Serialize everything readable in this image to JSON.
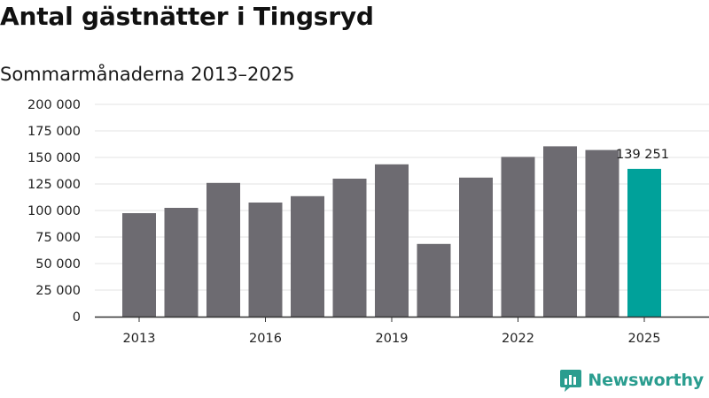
{
  "title": "Antal gästnätter i Tingsryd",
  "subtitle": "Sommarmånaderna 2013–2025",
  "brand": {
    "name": "Newsworthy",
    "icon": "newsworthy-logo-icon",
    "color": "#2a9d8f"
  },
  "colors": {
    "bar": "#6d6b71",
    "highlight": "#00a19a",
    "grid": "#e3e3e3",
    "axis": "#333333"
  },
  "chart_data": {
    "type": "bar",
    "title": "Antal gästnätter i Tingsryd",
    "subtitle": "Sommarmånaderna 2013–2025",
    "xlabel": "",
    "ylabel": "",
    "categories": [
      "2013",
      "2014",
      "2015",
      "2016",
      "2017",
      "2018",
      "2019",
      "2020",
      "2021",
      "2022",
      "2023",
      "2024",
      "2025"
    ],
    "values": [
      97500,
      102500,
      126000,
      107500,
      113500,
      130000,
      143500,
      68500,
      131000,
      150500,
      160500,
      157000,
      139251
    ],
    "highlight_index": 12,
    "x_tick_labels": [
      "2013",
      "2016",
      "2019",
      "2022",
      "2025"
    ],
    "y_ticks": [
      0,
      25000,
      50000,
      75000,
      100000,
      125000,
      150000,
      175000,
      200000
    ],
    "y_tick_labels": [
      "0",
      "25 000",
      "50 000",
      "75 000",
      "100 000",
      "125 000",
      "150 000",
      "175 000",
      "200 000"
    ],
    "ylim": [
      0,
      200000
    ],
    "grid": true,
    "data_labels": [
      {
        "category": "2025",
        "text": "139 251"
      }
    ]
  }
}
